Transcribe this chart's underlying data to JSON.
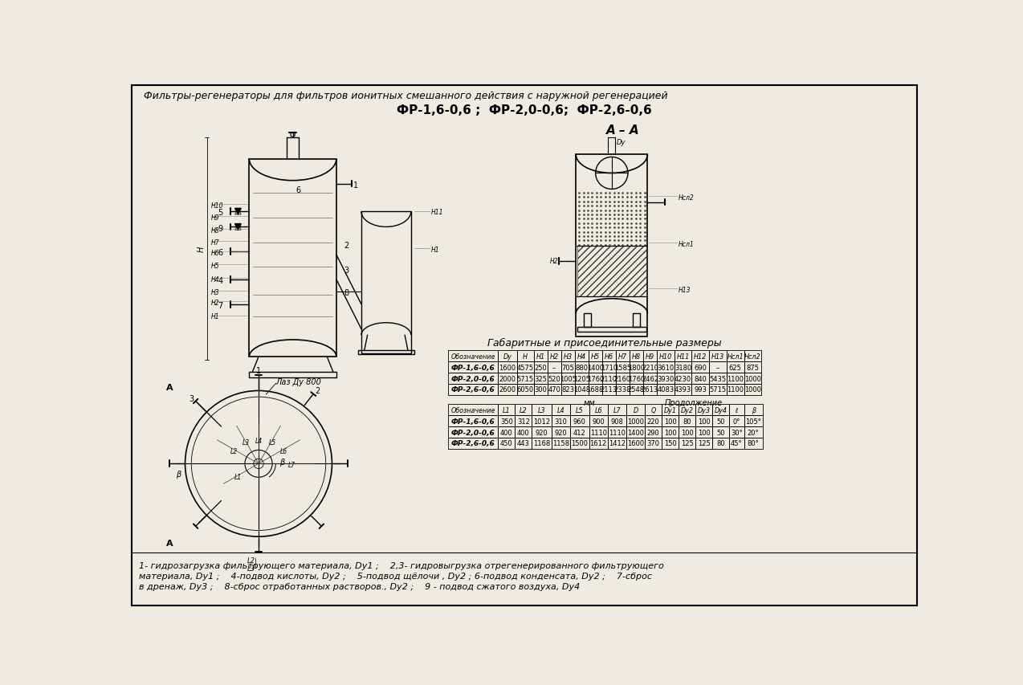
{
  "bg_color": "#f0ebe0",
  "title_line1": "Фильтры-регенераторы для фильтров ионитных смешанного действия с наружной регенерацией",
  "title_line2": "ФР-1,6-0,6 ;  ФР-2,0-0,6;  ФР-2,6-0,6",
  "section_label": "А – А",
  "table1_title": "Габаритные и присоединительные размеры",
  "table1_headers": [
    "Обозначение",
    "Dy",
    "H",
    "H1",
    "H2",
    "H3",
    "H4",
    "H5",
    "H6",
    "H7",
    "H8",
    "H9",
    "H10",
    "H11",
    "H12",
    "H13",
    "Нсл1",
    "Нсл2"
  ],
  "table1_rows": [
    [
      "ФР-1,6-0,6",
      "1600",
      "4575",
      "250",
      "–",
      "705",
      "880",
      "1400",
      "1710",
      "1585",
      "1800",
      "2210",
      "3610",
      "3180",
      "690",
      "–",
      "625",
      "875"
    ],
    [
      "ФР-2,0-0,6",
      "2000",
      "5715",
      "325",
      "520",
      "1005",
      "1205",
      "1760",
      "2110",
      "2160",
      "1760",
      "2462",
      "3930",
      "4230",
      "840",
      "5435",
      "1100",
      "1000"
    ],
    [
      "ФР-2,6-0,6",
      "2600",
      "6050",
      "300",
      "470",
      "823",
      "1048",
      "1688",
      "2113",
      "2338",
      "2548",
      "2613",
      "4083",
      "4393",
      "993",
      "5715",
      "1100",
      "1000"
    ]
  ],
  "table2_note_left": "мм",
  "table2_note_right": "Продолжение",
  "table2_headers": [
    "Обозначение",
    "L1",
    "L2",
    "L3",
    "L4",
    "L5",
    "L6",
    "L7",
    "D",
    "Q",
    "Dy1",
    "Dy2",
    "Dy3",
    "Dy4",
    "ℓ",
    "β"
  ],
  "table2_rows": [
    [
      "ФР-1,6-0,6",
      "350",
      "312",
      "1012",
      "310",
      "960",
      "900",
      "908",
      "1000",
      "220",
      "100",
      "80",
      "100",
      "50",
      "0°",
      "105°"
    ],
    [
      "ФР-2,0-0,6",
      "400",
      "400",
      "920",
      "920",
      "412",
      "1110",
      "1110",
      "1400",
      "290",
      "100",
      "100",
      "100",
      "50",
      "30°",
      "20°"
    ],
    [
      "ФР-2,6-0,6",
      "450",
      "443",
      "1168",
      "1158",
      "1500",
      "1612",
      "1412",
      "1600",
      "370",
      "150",
      "125",
      "125",
      "80",
      "45°",
      "80°"
    ]
  ],
  "footnote_line1": "1- гидрозагрузка фильтрующего материала, Dy1 ;    2,3- гидровыгрузка отрегенерированного фильтрующего",
  "footnote_line2": "материала, Dy1 ;    4-подвод кислоты, Dy2 ;    5-подвод щёлочи , Dy2 ; 6-подвод конденсата, Dy2 ;    7-сброс",
  "footnote_line3": "в дренаж, Dy3 ;    8-сброс отработанных растворов., Dy2 ;    9 - подвод сжатого воздуха, Dy4"
}
